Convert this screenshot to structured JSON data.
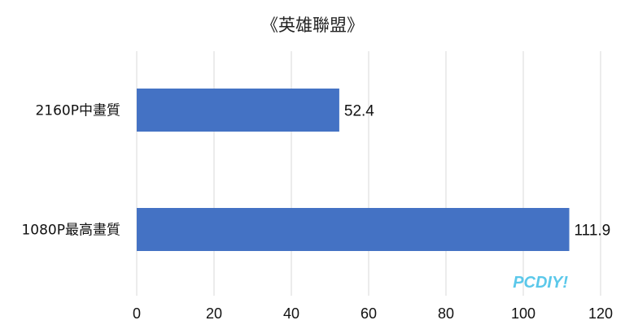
{
  "chart_data": {
    "type": "bar",
    "orientation": "horizontal",
    "title": "《英雄聯盟》",
    "categories": [
      "2160P中畫質",
      "1080P最高畫質"
    ],
    "values": [
      52.4,
      111.9
    ],
    "value_labels": [
      "52.4",
      "111.9"
    ],
    "xlim": [
      0,
      120
    ],
    "xticks": [
      0,
      20,
      40,
      60,
      80,
      100,
      120
    ],
    "xtick_labels": [
      "0",
      "20",
      "40",
      "60",
      "80",
      "100",
      "120"
    ],
    "grid": true,
    "legend": "none",
    "bar_color": "#4472c4",
    "grid_color": "#d9d9d9"
  },
  "watermark": {
    "text": "PCDIY!",
    "color": "#5bc8ea"
  }
}
